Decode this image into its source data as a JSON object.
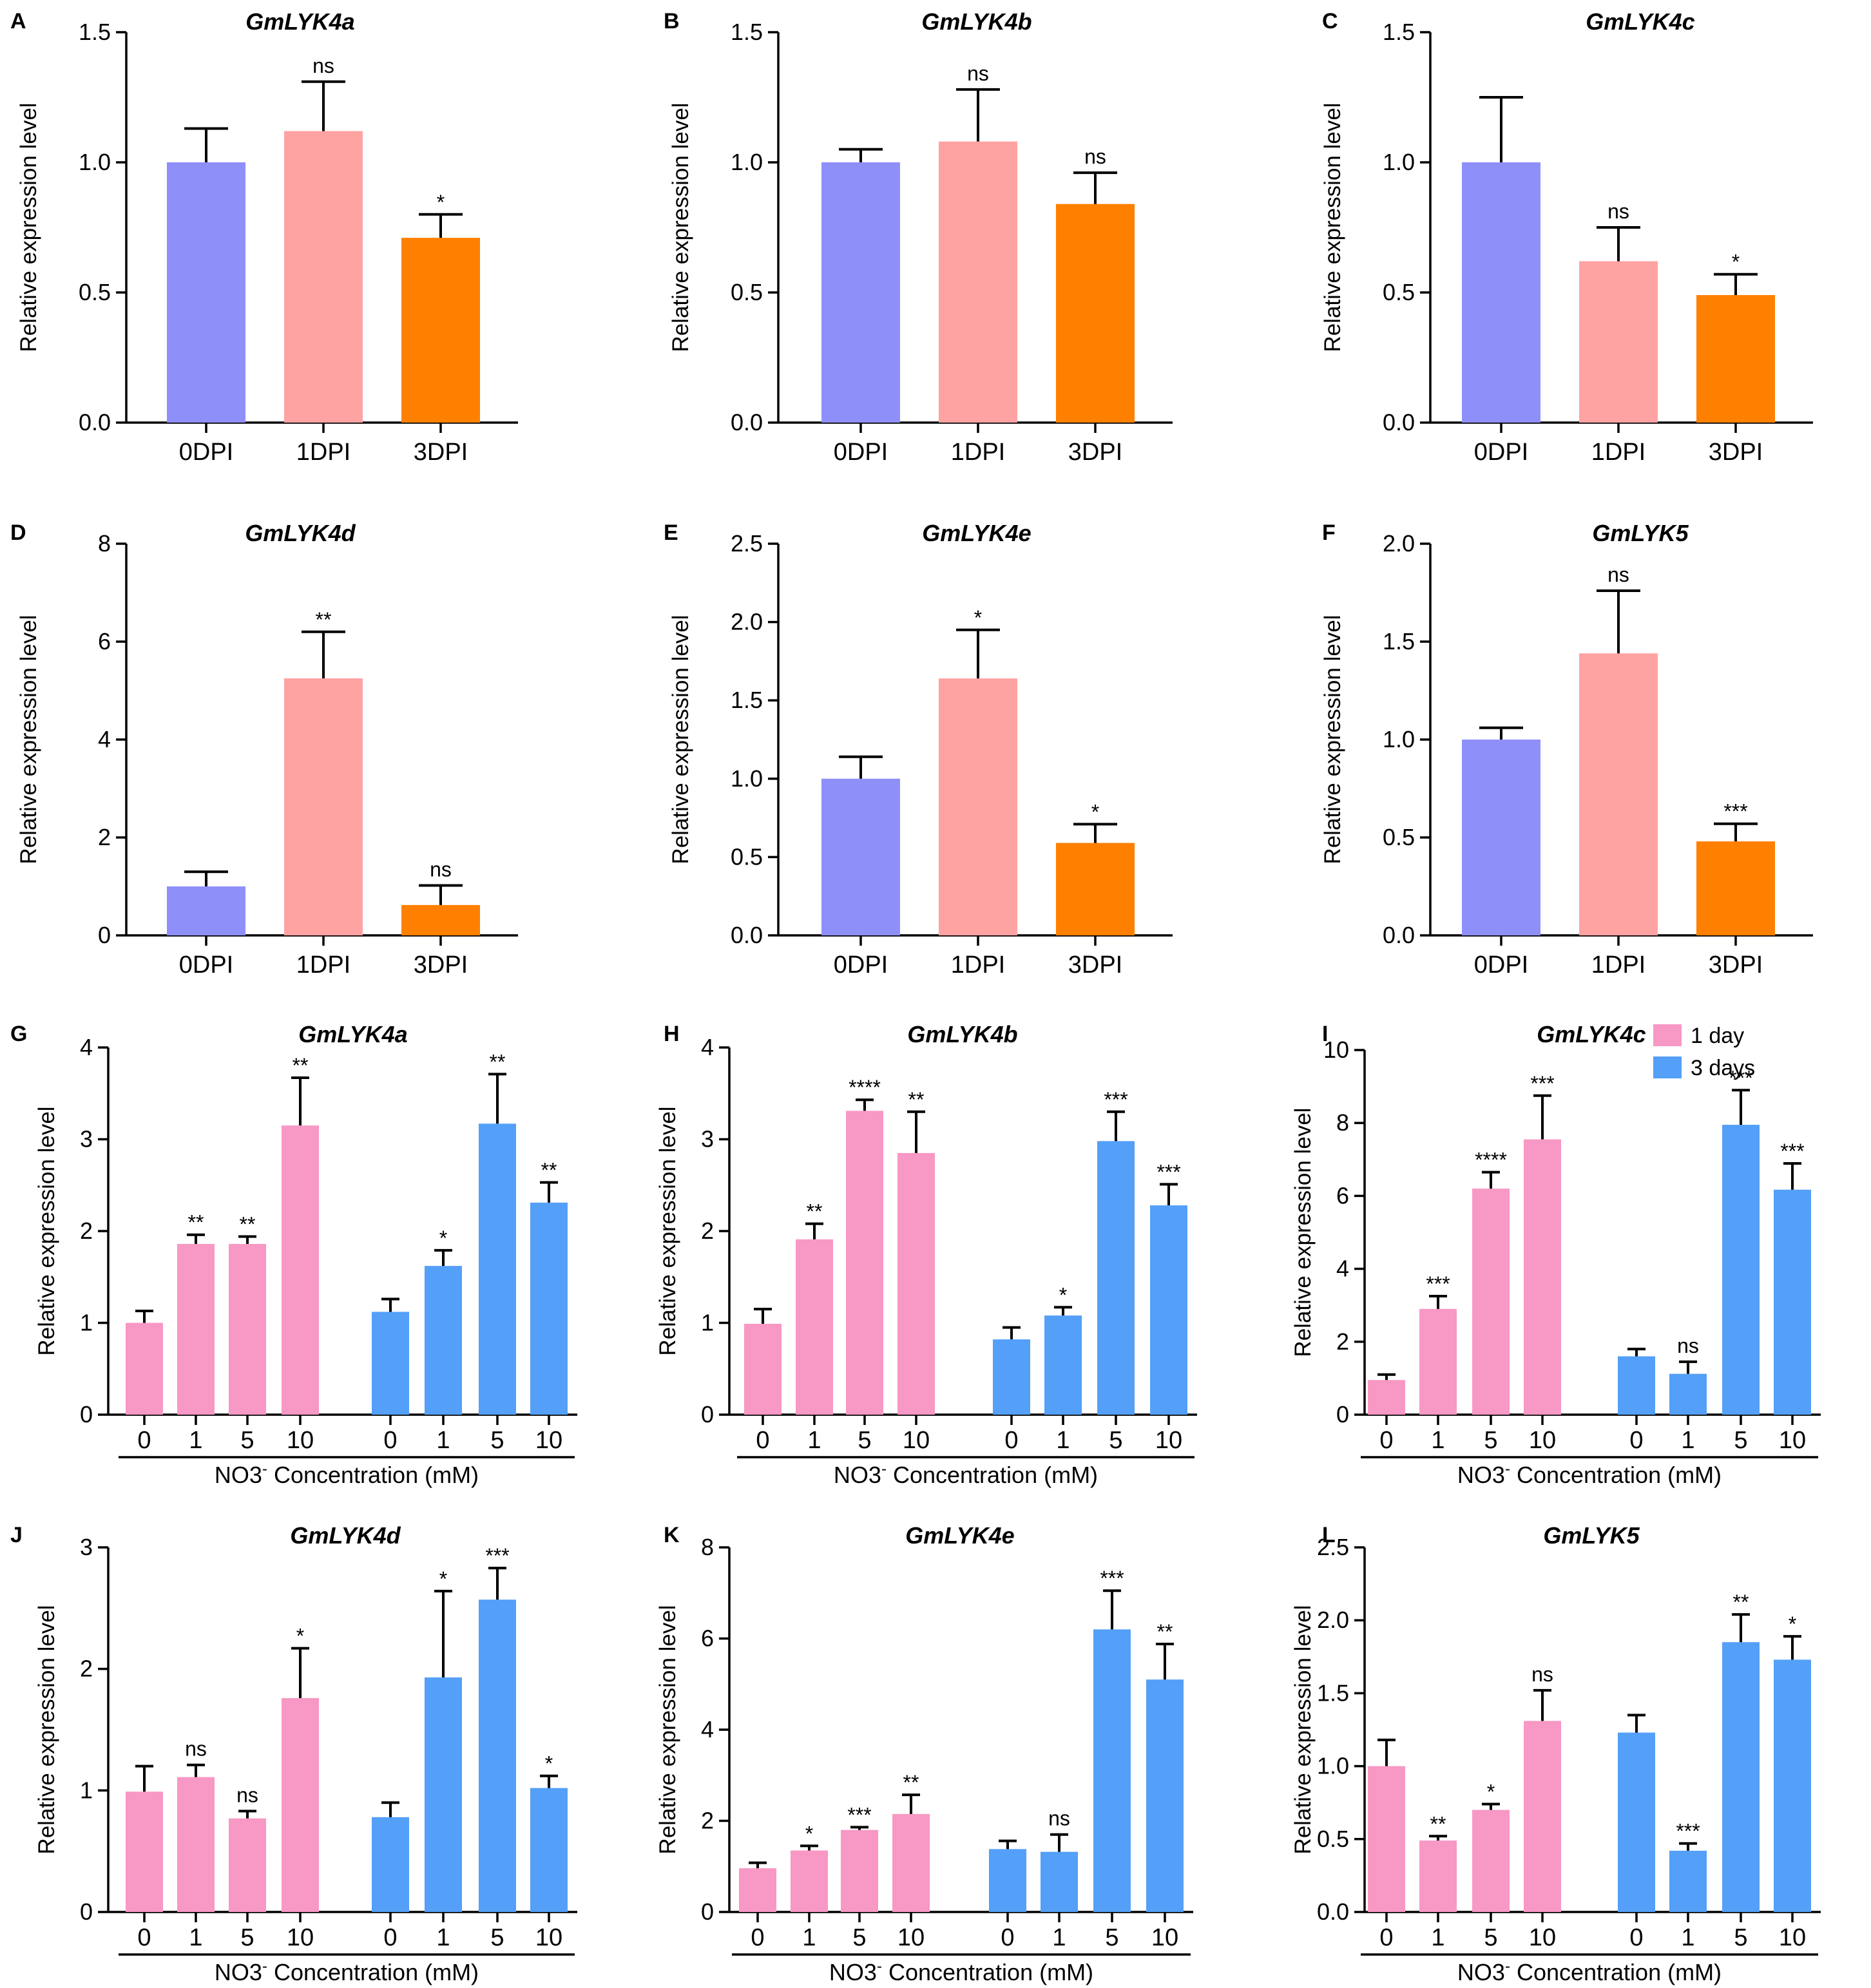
{
  "colors": {
    "dpi": [
      "#8f8ffa",
      "#ffa2a2",
      "#ff8000"
    ],
    "day1": "#f898c4",
    "day3": "#549ff8"
  },
  "legend": {
    "items": [
      {
        "label": "1 day",
        "color": "#f898c4"
      },
      {
        "label": "3 days",
        "color": "#549ff8"
      }
    ]
  },
  "chart_data": [
    {
      "panel": "A",
      "title": "GmLYK4a",
      "type": "bar",
      "ylabel": "Relative expression level",
      "categories": [
        "0DPI",
        "1DPI",
        "3DPI"
      ],
      "values": [
        1.0,
        1.12,
        0.71
      ],
      "errors": [
        0.13,
        0.19,
        0.09
      ],
      "significance": [
        "",
        "ns",
        "*"
      ],
      "ylim": [
        0,
        1.5
      ],
      "yticks": [
        "0.0",
        "0.5",
        "1.0",
        "1.5"
      ]
    },
    {
      "panel": "B",
      "title": "GmLYK4b",
      "type": "bar",
      "ylabel": "Relative expression level",
      "categories": [
        "0DPI",
        "1DPI",
        "3DPI"
      ],
      "values": [
        1.0,
        1.08,
        0.84
      ],
      "errors": [
        0.05,
        0.2,
        0.12
      ],
      "significance": [
        "",
        "ns",
        "ns"
      ],
      "ylim": [
        0,
        1.5
      ],
      "yticks": [
        "0.0",
        "0.5",
        "1.0",
        "1.5"
      ]
    },
    {
      "panel": "C",
      "title": "GmLYK4c",
      "type": "bar",
      "ylabel": "Relative expression level",
      "categories": [
        "0DPI",
        "1DPI",
        "3DPI"
      ],
      "values": [
        1.0,
        0.62,
        0.49
      ],
      "errors": [
        0.25,
        0.13,
        0.08
      ],
      "significance": [
        "",
        "ns",
        "*"
      ],
      "ylim": [
        0,
        1.5
      ],
      "yticks": [
        "0.0",
        "0.5",
        "1.0",
        "1.5"
      ]
    },
    {
      "panel": "D",
      "title": "GmLYK4d",
      "type": "bar",
      "ylabel": "Relative expression level",
      "categories": [
        "0DPI",
        "1DPI",
        "3DPI"
      ],
      "values": [
        1.0,
        5.25,
        0.62
      ],
      "errors": [
        0.3,
        0.95,
        0.4
      ],
      "significance": [
        "",
        "**",
        "ns"
      ],
      "ylim": [
        0,
        8
      ],
      "yticks": [
        "0",
        "2",
        "4",
        "6",
        "8"
      ]
    },
    {
      "panel": "E",
      "title": "GmLYK4e",
      "type": "bar",
      "ylabel": "Relative expression level",
      "categories": [
        "0DPI",
        "1DPI",
        "3DPI"
      ],
      "values": [
        1.0,
        1.64,
        0.59
      ],
      "errors": [
        0.14,
        0.31,
        0.12
      ],
      "significance": [
        "",
        "*",
        "*"
      ],
      "ylim": [
        0,
        2.5
      ],
      "yticks": [
        "0.0",
        "0.5",
        "1.0",
        "1.5",
        "2.0",
        "2.5"
      ]
    },
    {
      "panel": "F",
      "title": "GmLYK5",
      "type": "bar",
      "ylabel": "Relative expression level",
      "categories": [
        "0DPI",
        "1DPI",
        "3DPI"
      ],
      "values": [
        1.0,
        1.44,
        0.48
      ],
      "errors": [
        0.06,
        0.32,
        0.09
      ],
      "significance": [
        "",
        "ns",
        "***"
      ],
      "ylim": [
        0,
        2.0
      ],
      "yticks": [
        "0.0",
        "0.5",
        "1.0",
        "1.5",
        "2.0"
      ]
    },
    {
      "panel": "G",
      "title": "GmLYK4a",
      "type": "bar",
      "ylabel": "Relative expression level",
      "xlabel_html": "NO3⁻ Concentration (mM)",
      "xlabel_base": "NO3",
      "xlabel_sup": "-",
      "xlabel_rest": " Concentration (mM)",
      "categories": [
        "0",
        "1",
        "5",
        "10"
      ],
      "series": [
        {
          "name": "1 day",
          "values": [
            1.0,
            1.86,
            1.86,
            3.15
          ],
          "errors": [
            0.13,
            0.1,
            0.08,
            0.52
          ],
          "significance": [
            "",
            "**",
            "**",
            "**"
          ]
        },
        {
          "name": "3 days",
          "values": [
            1.12,
            1.62,
            3.17,
            2.31
          ],
          "errors": [
            0.14,
            0.17,
            0.54,
            0.22
          ],
          "significance": [
            "",
            "*",
            "**",
            "**"
          ]
        }
      ],
      "ylim": [
        0,
        4
      ],
      "yticks": [
        "0",
        "1",
        "2",
        "3",
        "4"
      ]
    },
    {
      "panel": "H",
      "title": "GmLYK4b",
      "type": "bar",
      "ylabel": "Relative expression level",
      "xlabel_base": "NO3",
      "xlabel_sup": "-",
      "xlabel_rest": " Concentration (mM)",
      "categories": [
        "0",
        "1",
        "5",
        "10"
      ],
      "series": [
        {
          "name": "1 day",
          "values": [
            0.99,
            1.91,
            3.31,
            2.85
          ],
          "errors": [
            0.16,
            0.17,
            0.12,
            0.45
          ],
          "significance": [
            "",
            "**",
            "****",
            "**"
          ]
        },
        {
          "name": "3 days",
          "values": [
            0.82,
            1.08,
            2.98,
            2.28
          ],
          "errors": [
            0.13,
            0.09,
            0.32,
            0.23
          ],
          "significance": [
            "",
            "*",
            "***",
            "***"
          ]
        }
      ],
      "ylim": [
        0,
        4
      ],
      "yticks": [
        "0",
        "1",
        "2",
        "3",
        "4"
      ]
    },
    {
      "panel": "I",
      "title": "GmLYK4c",
      "type": "bar",
      "ylabel": "Relative expression level",
      "xlabel_base": "NO3",
      "xlabel_sup": "-",
      "xlabel_rest": " Concentration (mM)",
      "categories": [
        "0",
        "1",
        "5",
        "10"
      ],
      "series": [
        {
          "name": "1 day",
          "values": [
            0.95,
            2.9,
            6.2,
            7.55
          ],
          "errors": [
            0.15,
            0.35,
            0.45,
            1.2
          ],
          "significance": [
            "",
            "***",
            "****",
            "***"
          ]
        },
        {
          "name": "3 days",
          "values": [
            1.6,
            1.12,
            7.95,
            6.17
          ],
          "errors": [
            0.2,
            0.33,
            0.95,
            0.72
          ],
          "significance": [
            "",
            "ns",
            "***",
            "***"
          ]
        }
      ],
      "ylim": [
        0,
        10
      ],
      "yticks": [
        "0",
        "2",
        "4",
        "6",
        "8",
        "10"
      ]
    },
    {
      "panel": "J",
      "title": "GmLYK4d",
      "type": "bar",
      "ylabel": "Relative expression level",
      "xlabel_base": "NO3",
      "xlabel_sup": "-",
      "xlabel_rest": " Concentration (mM)",
      "categories": [
        "0",
        "1",
        "5",
        "10"
      ],
      "series": [
        {
          "name": "1 day",
          "values": [
            0.99,
            1.11,
            0.77,
            1.76
          ],
          "errors": [
            0.21,
            0.1,
            0.06,
            0.41
          ],
          "significance": [
            "",
            "ns",
            "ns",
            "*"
          ]
        },
        {
          "name": "3 days",
          "values": [
            0.78,
            1.93,
            2.57,
            1.02
          ],
          "errors": [
            0.12,
            0.71,
            0.26,
            0.1
          ],
          "significance": [
            "",
            "*",
            "***",
            "*"
          ]
        }
      ],
      "ylim": [
        0,
        3
      ],
      "yticks": [
        "0",
        "1",
        "2",
        "3"
      ]
    },
    {
      "panel": "K",
      "title": "GmLYK4e",
      "type": "bar",
      "ylabel": "Relative expression level",
      "xlabel_base": "NO3",
      "xlabel_sup": "-",
      "xlabel_rest": " Concentration (mM)",
      "categories": [
        "0",
        "1",
        "5",
        "10"
      ],
      "series": [
        {
          "name": "1 day",
          "values": [
            0.96,
            1.35,
            1.8,
            2.15
          ],
          "errors": [
            0.12,
            0.1,
            0.06,
            0.42
          ],
          "significance": [
            "",
            "*",
            "***",
            "**"
          ]
        },
        {
          "name": "3 days",
          "values": [
            1.38,
            1.32,
            6.2,
            5.1
          ],
          "errors": [
            0.18,
            0.38,
            0.85,
            0.78
          ],
          "significance": [
            "",
            "ns",
            "***",
            "**"
          ]
        }
      ],
      "ylim": [
        0,
        8
      ],
      "yticks": [
        "0",
        "2",
        "4",
        "6",
        "8"
      ]
    },
    {
      "panel": "L",
      "title": "GmLYK5",
      "type": "bar",
      "ylabel": "Relative expression level",
      "xlabel_base": "NO3",
      "xlabel_sup": "-",
      "xlabel_rest": " Concentration (mM)",
      "categories": [
        "0",
        "1",
        "5",
        "10"
      ],
      "series": [
        {
          "name": "1 day",
          "values": [
            1.0,
            0.49,
            0.7,
            1.31
          ],
          "errors": [
            0.18,
            0.03,
            0.04,
            0.21
          ],
          "significance": [
            "",
            "**",
            "*",
            "ns"
          ]
        },
        {
          "name": "3 days",
          "values": [
            1.23,
            0.42,
            1.85,
            1.73
          ],
          "errors": [
            0.12,
            0.05,
            0.19,
            0.16
          ],
          "significance": [
            "",
            "***",
            "**",
            "*"
          ]
        }
      ],
      "ylim": [
        0,
        2.5
      ],
      "yticks": [
        "0.0",
        "0.5",
        "1.0",
        "1.5",
        "2.0",
        "2.5"
      ]
    }
  ]
}
